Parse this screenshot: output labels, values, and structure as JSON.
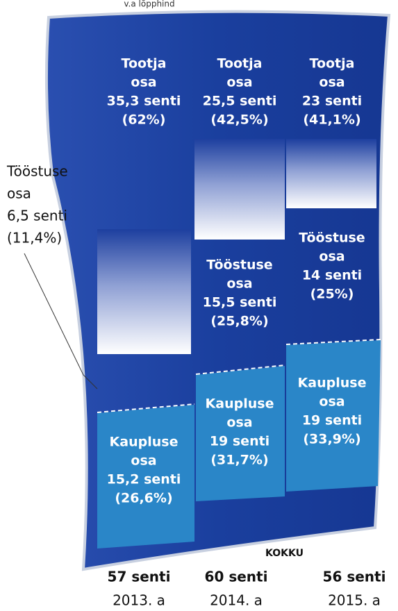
{
  "header": {
    "note": "v.a lõpphind"
  },
  "columns": [
    {
      "producer": [
        "Tootja",
        "osa",
        "35,3 senti",
        "(62%)"
      ],
      "industry": [
        "Tööstuse",
        "osa",
        "6,5 senti",
        "(11,4%)"
      ],
      "shop": [
        "Kaupluse",
        "osa",
        "15,2 senti",
        "(26,6%)"
      ],
      "total": "57 senti",
      "year": "2013. a"
    },
    {
      "producer": [
        "Tootja",
        "osa",
        "25,5 senti",
        "(42,5%)"
      ],
      "industry": [
        "Tööstuse",
        "osa",
        "15,5 senti",
        "(25,8%)"
      ],
      "shop": [
        "Kaupluse",
        "osa",
        "19 senti",
        "(31,7%)"
      ],
      "total": "60 senti",
      "year": "2014. a"
    },
    {
      "producer": [
        "Tootja",
        "osa",
        "23 senti",
        "(41,1%)"
      ],
      "industry": [
        "Tööstuse",
        "osa",
        "14 senti",
        "(25%)"
      ],
      "shop": [
        "Kaupluse",
        "osa",
        "19 senti",
        "(33,9%)"
      ],
      "total": "56 senti",
      "year": "2015. a"
    }
  ],
  "total_label": "KOKKU"
}
